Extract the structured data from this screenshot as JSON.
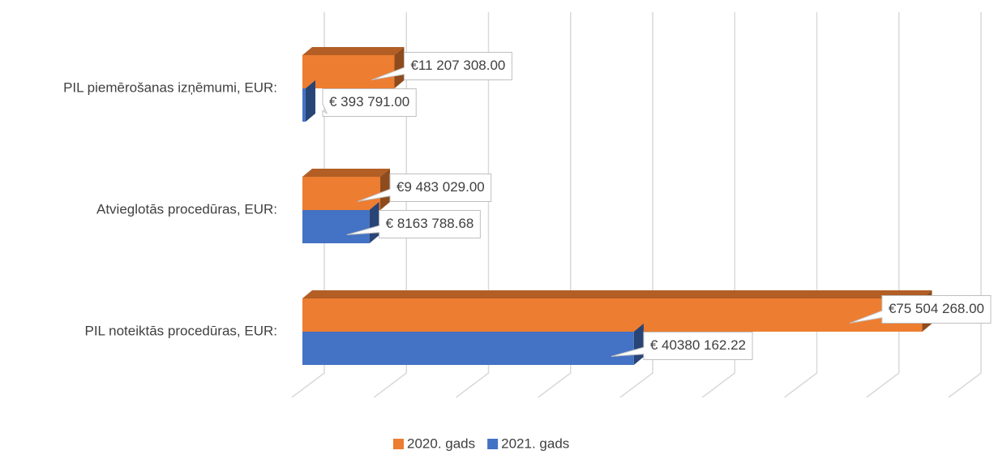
{
  "chart_data": {
    "type": "bar3d_horizontal",
    "categories": [
      "PIL piemērošanas izņēmumi, EUR:",
      "Atvieglotās procedūras, EUR:",
      "PIL noteiktās procedūras, EUR:"
    ],
    "series": [
      {
        "name": "2020. gads",
        "color": "#ed7d31",
        "values": [
          11207308,
          9483029,
          75504268
        ],
        "value_labels": [
          "€11 207 308.00",
          "€9 483 029.00",
          "€75 504 268.00"
        ]
      },
      {
        "name": "2021. gads",
        "color": "#4472c4",
        "values": [
          393791,
          8163788.68,
          40380162.22
        ],
        "value_labels": [
          "€ 393 791.00",
          "€ 8163 788.68",
          "€ 40380 162.22"
        ]
      }
    ],
    "xlim": [
      0,
      80000000
    ],
    "xticks": [
      0,
      10000000,
      20000000,
      30000000,
      40000000,
      50000000,
      60000000,
      70000000,
      80000000
    ],
    "grid": true,
    "legend": "bottom"
  }
}
